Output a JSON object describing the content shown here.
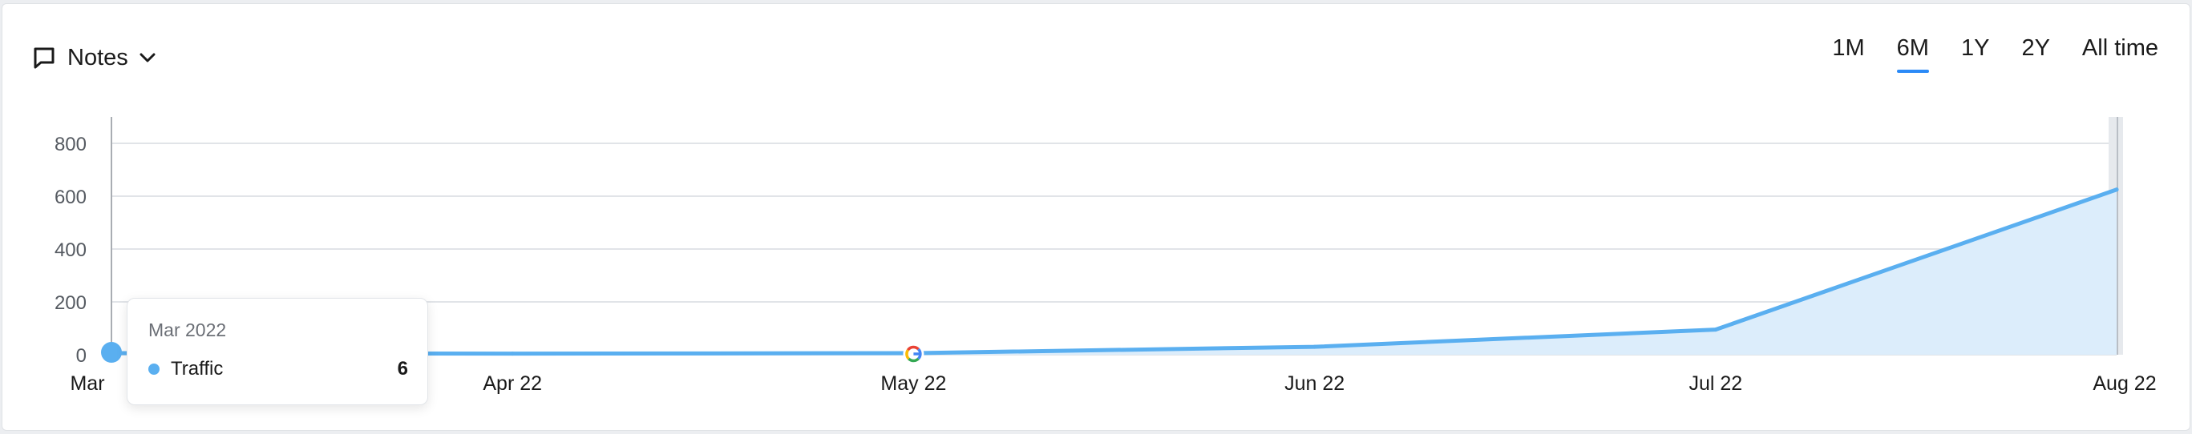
{
  "notes": {
    "label": "Notes",
    "icon": "comment-icon"
  },
  "ranges": [
    {
      "label": "1M",
      "active": false
    },
    {
      "label": "6M",
      "active": true
    },
    {
      "label": "1Y",
      "active": false
    },
    {
      "label": "2Y",
      "active": false
    },
    {
      "label": "All time",
      "active": false
    }
  ],
  "colors": {
    "line": "#5aaff0",
    "area": "#dcedfb",
    "accent": "#2b8af7",
    "grid": "#e1e4e8"
  },
  "chart_data": {
    "type": "area",
    "x": [
      "Mar",
      "Apr 22",
      "May 22",
      "Jun 22",
      "Jul 22",
      "Aug 22"
    ],
    "series": [
      {
        "name": "Traffic",
        "values": [
          6,
          4,
          6,
          30,
          95,
          625
        ]
      }
    ],
    "yticks": [
      "0",
      "200",
      "400",
      "600",
      "800"
    ],
    "ylim": [
      0,
      900
    ],
    "grid": true,
    "markers": [
      {
        "x": "May 22",
        "icon": "google-update-icon"
      }
    ]
  },
  "tooltip": {
    "title": "Mar 2022",
    "series": "Traffic",
    "value": "6"
  }
}
